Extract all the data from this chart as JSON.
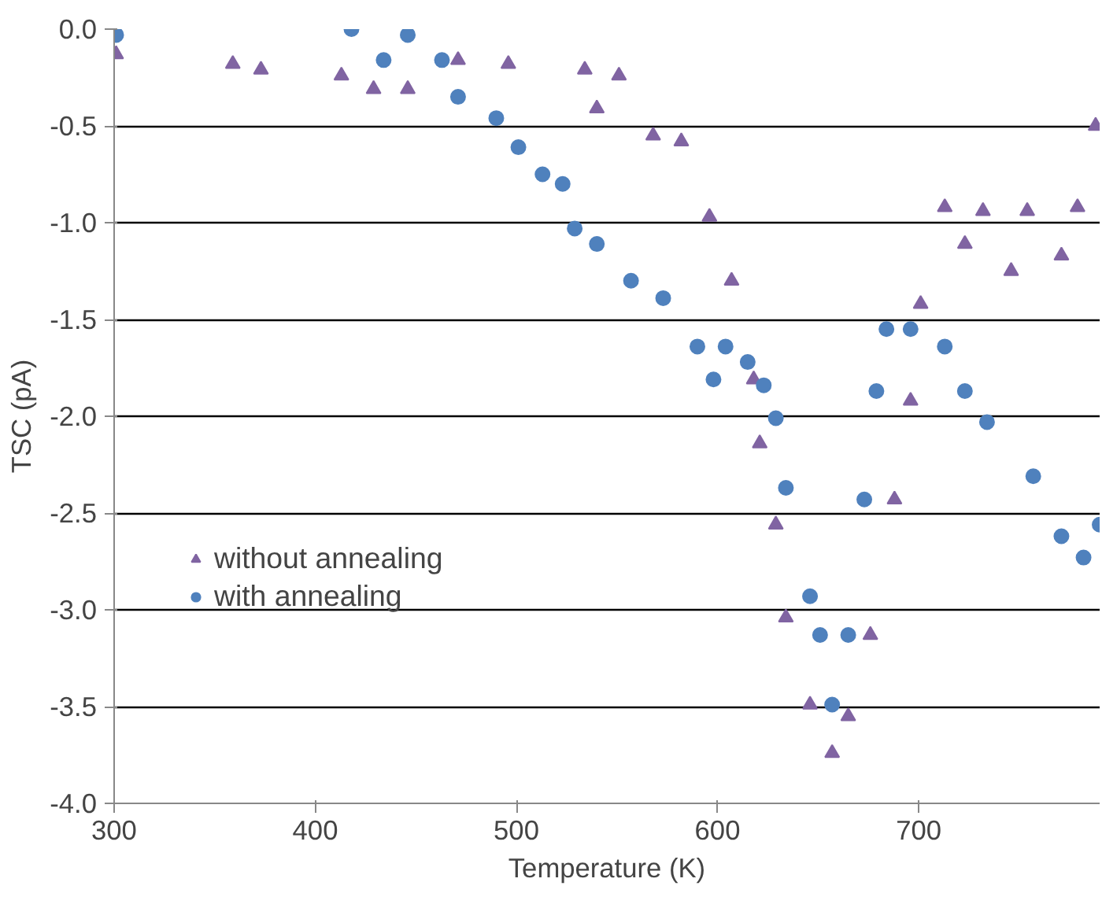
{
  "chart_data": {
    "type": "scatter",
    "xlabel": "Temperature (K)",
    "ylabel": "TSC (pA)",
    "xlim": [
      300,
      790
    ],
    "xticks": [
      300,
      400,
      500,
      600,
      700
    ],
    "ylim": [
      -4,
      0
    ],
    "yticks": [
      {
        "value": 0,
        "label": "0.0"
      },
      {
        "value": -0.5,
        "label": "-0.5"
      },
      {
        "value": -1,
        "label": "-1.0"
      },
      {
        "value": -1.5,
        "label": "-1.5"
      },
      {
        "value": -2,
        "label": "-2.0"
      },
      {
        "value": -2.5,
        "label": "-2.5"
      },
      {
        "value": -3,
        "label": "-3.0"
      },
      {
        "value": -3.5,
        "label": "-3.5"
      },
      {
        "value": -4,
        "label": "-4.0"
      }
    ],
    "grid": "y",
    "legend": "left",
    "series": [
      {
        "name": "without annealing",
        "color": "#8064a2",
        "marker": "triangle",
        "x": [
          301,
          359,
          373,
          413,
          429,
          446,
          471,
          496,
          534,
          540,
          551,
          568,
          582,
          596,
          607,
          618,
          621,
          629,
          634,
          646,
          657,
          665,
          676,
          688,
          696,
          701,
          713,
          723,
          732,
          746,
          754,
          771,
          779,
          788
        ],
        "values": [
          -0.13,
          -0.18,
          -0.21,
          -0.24,
          -0.31,
          -0.31,
          -0.16,
          -0.18,
          -0.21,
          -0.41,
          -0.24,
          -0.55,
          -0.58,
          -0.97,
          -1.3,
          -1.81,
          -2.14,
          -2.56,
          -3.04,
          -3.49,
          -3.74,
          -3.55,
          -3.13,
          -2.43,
          -1.92,
          -1.42,
          -0.92,
          -1.11,
          -0.94,
          -1.25,
          -0.94,
          -1.17,
          -0.92,
          -0.5
        ]
      },
      {
        "name": "with annealing",
        "color": "#4f81bd",
        "marker": "circle",
        "x": [
          301,
          418,
          434,
          446,
          463,
          471,
          490,
          501,
          513,
          523,
          529,
          540,
          557,
          573,
          590,
          598,
          604,
          615,
          623,
          629,
          634,
          646,
          651,
          657,
          665,
          673,
          679,
          684,
          696,
          713,
          723,
          734,
          757,
          771,
          782,
          790
        ],
        "values": [
          -0.03,
          0.0,
          -0.16,
          -0.03,
          -0.16,
          -0.35,
          -0.46,
          -0.61,
          -0.75,
          -0.8,
          -1.03,
          -1.11,
          -1.3,
          -1.39,
          -1.64,
          -1.81,
          -1.64,
          -1.72,
          -1.84,
          -2.01,
          -2.37,
          -2.93,
          -3.13,
          -3.49,
          -3.13,
          -2.43,
          -1.87,
          -1.55,
          -1.55,
          -1.64,
          -1.87,
          -2.03,
          -2.31,
          -2.62,
          -2.73,
          -2.56
        ]
      }
    ]
  }
}
